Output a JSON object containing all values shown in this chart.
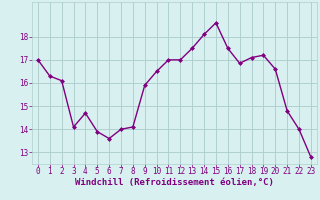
{
  "x": [
    0,
    1,
    2,
    3,
    4,
    5,
    6,
    7,
    8,
    9,
    10,
    11,
    12,
    13,
    14,
    15,
    16,
    17,
    18,
    19,
    20,
    21,
    22,
    23
  ],
  "y": [
    17.0,
    16.3,
    16.1,
    14.1,
    14.7,
    13.9,
    13.6,
    14.0,
    14.1,
    15.9,
    16.5,
    17.0,
    17.0,
    17.5,
    18.1,
    18.6,
    17.5,
    16.85,
    17.1,
    17.2,
    16.6,
    14.8,
    14.0,
    12.8
  ],
  "line_color": "#800080",
  "marker": "D",
  "marker_size": 2,
  "bg_color": "#d8f0f0",
  "grid_color": "#b0d0d0",
  "xlabel": "Windchill (Refroidissement éolien,°C)",
  "ylim": [
    12.5,
    19.5
  ],
  "xlim": [
    -0.5,
    23.5
  ],
  "yticks": [
    13,
    14,
    15,
    16,
    17,
    18
  ],
  "xticks": [
    0,
    1,
    2,
    3,
    4,
    5,
    6,
    7,
    8,
    9,
    10,
    11,
    12,
    13,
    14,
    15,
    16,
    17,
    18,
    19,
    20,
    21,
    22,
    23
  ],
  "tick_label_color": "#800080",
  "tick_label_size": 5.5,
  "xlabel_size": 6.5,
  "xlabel_color": "#800080",
  "line_width": 1.0
}
